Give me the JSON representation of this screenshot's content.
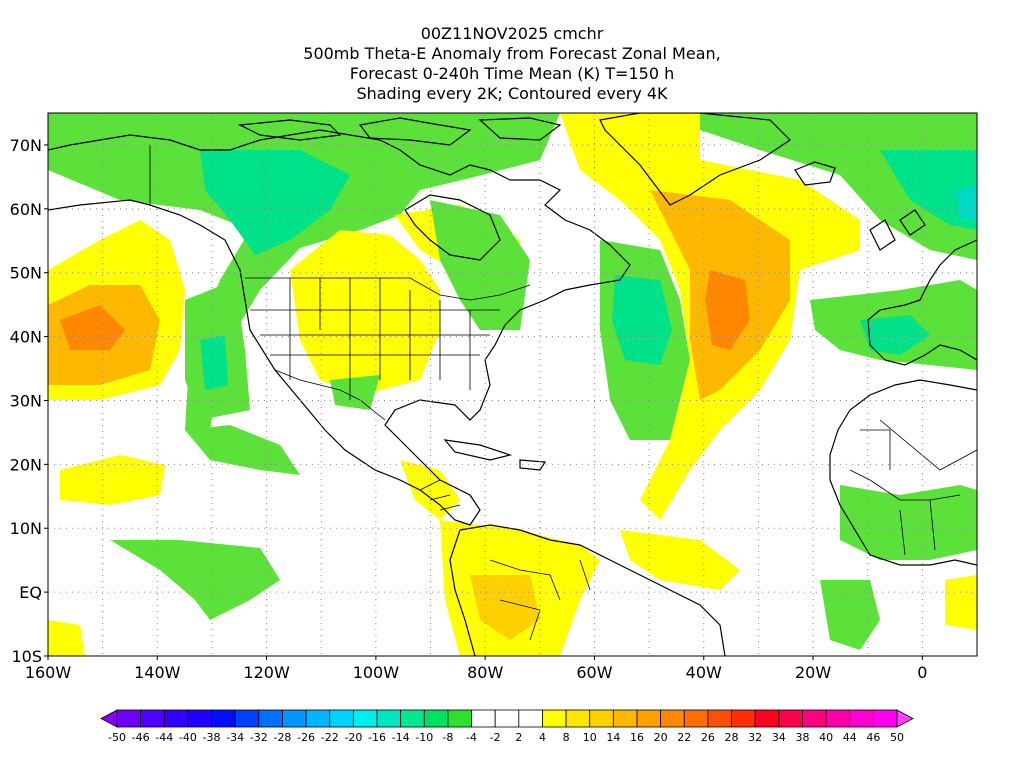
{
  "title": {
    "line1": "00Z11NOV2025 cmchr",
    "line2": "500mb Theta-E Anomaly from Forecast Zonal Mean,",
    "line3": "Forecast 0-240h Time Mean (K) T=150 h",
    "line4": "Shading every 2K; Contoured every 4K"
  },
  "map": {
    "lon_range": [
      -160,
      10
    ],
    "lat_range": [
      -10,
      75
    ],
    "lon_ticks": [
      {
        "lon": -160,
        "label": "160W"
      },
      {
        "lon": -140,
        "label": "140W"
      },
      {
        "lon": -120,
        "label": "120W"
      },
      {
        "lon": -100,
        "label": "100W"
      },
      {
        "lon": -80,
        "label": "80W"
      },
      {
        "lon": -60,
        "label": "60W"
      },
      {
        "lon": -40,
        "label": "40W"
      },
      {
        "lon": -20,
        "label": "20W"
      },
      {
        "lon": 0,
        "label": "0"
      }
    ],
    "lat_ticks": [
      {
        "lat": 70,
        "label": "70N"
      },
      {
        "lat": 60,
        "label": "60N"
      },
      {
        "lat": 50,
        "label": "50N"
      },
      {
        "lat": 40,
        "label": "40N"
      },
      {
        "lat": 30,
        "label": "30N"
      },
      {
        "lat": 20,
        "label": "20N"
      },
      {
        "lat": 10,
        "label": "10N"
      },
      {
        "lat": 0,
        "label": "EQ"
      },
      {
        "lat": -10,
        "label": "10S"
      }
    ],
    "grid": true
  },
  "colorbar": {
    "labels": [
      "-50",
      "-46",
      "-44",
      "-40",
      "-38",
      "-34",
      "-32",
      "-28",
      "-26",
      "-22",
      "-20",
      "-16",
      "-14",
      "-10",
      "-8",
      "-4",
      "-2",
      "2",
      "4",
      "8",
      "10",
      "14",
      "16",
      "20",
      "22",
      "26",
      "28",
      "32",
      "34",
      "38",
      "40",
      "44",
      "46",
      "50"
    ],
    "colors": [
      "#8a00ff",
      "#6e00ff",
      "#5000ff",
      "#3300ff",
      "#1f00ff",
      "#0010ff",
      "#0040ff",
      "#0070ff",
      "#0095ff",
      "#00b5ff",
      "#00d2ff",
      "#00eef0",
      "#00e6c0",
      "#00e890",
      "#00e060",
      "#30e030",
      "#ffffff",
      "#ffffff",
      "#ffffff",
      "#ffff00",
      "#ffe600",
      "#ffd000",
      "#ffb800",
      "#ffa000",
      "#ff8800",
      "#ff6e00",
      "#ff5000",
      "#ff2e00",
      "#ff0020",
      "#ff0050",
      "#ff0080",
      "#ff00a8",
      "#ff00d0",
      "#ff00f0",
      "#ff40ff"
    ]
  }
}
